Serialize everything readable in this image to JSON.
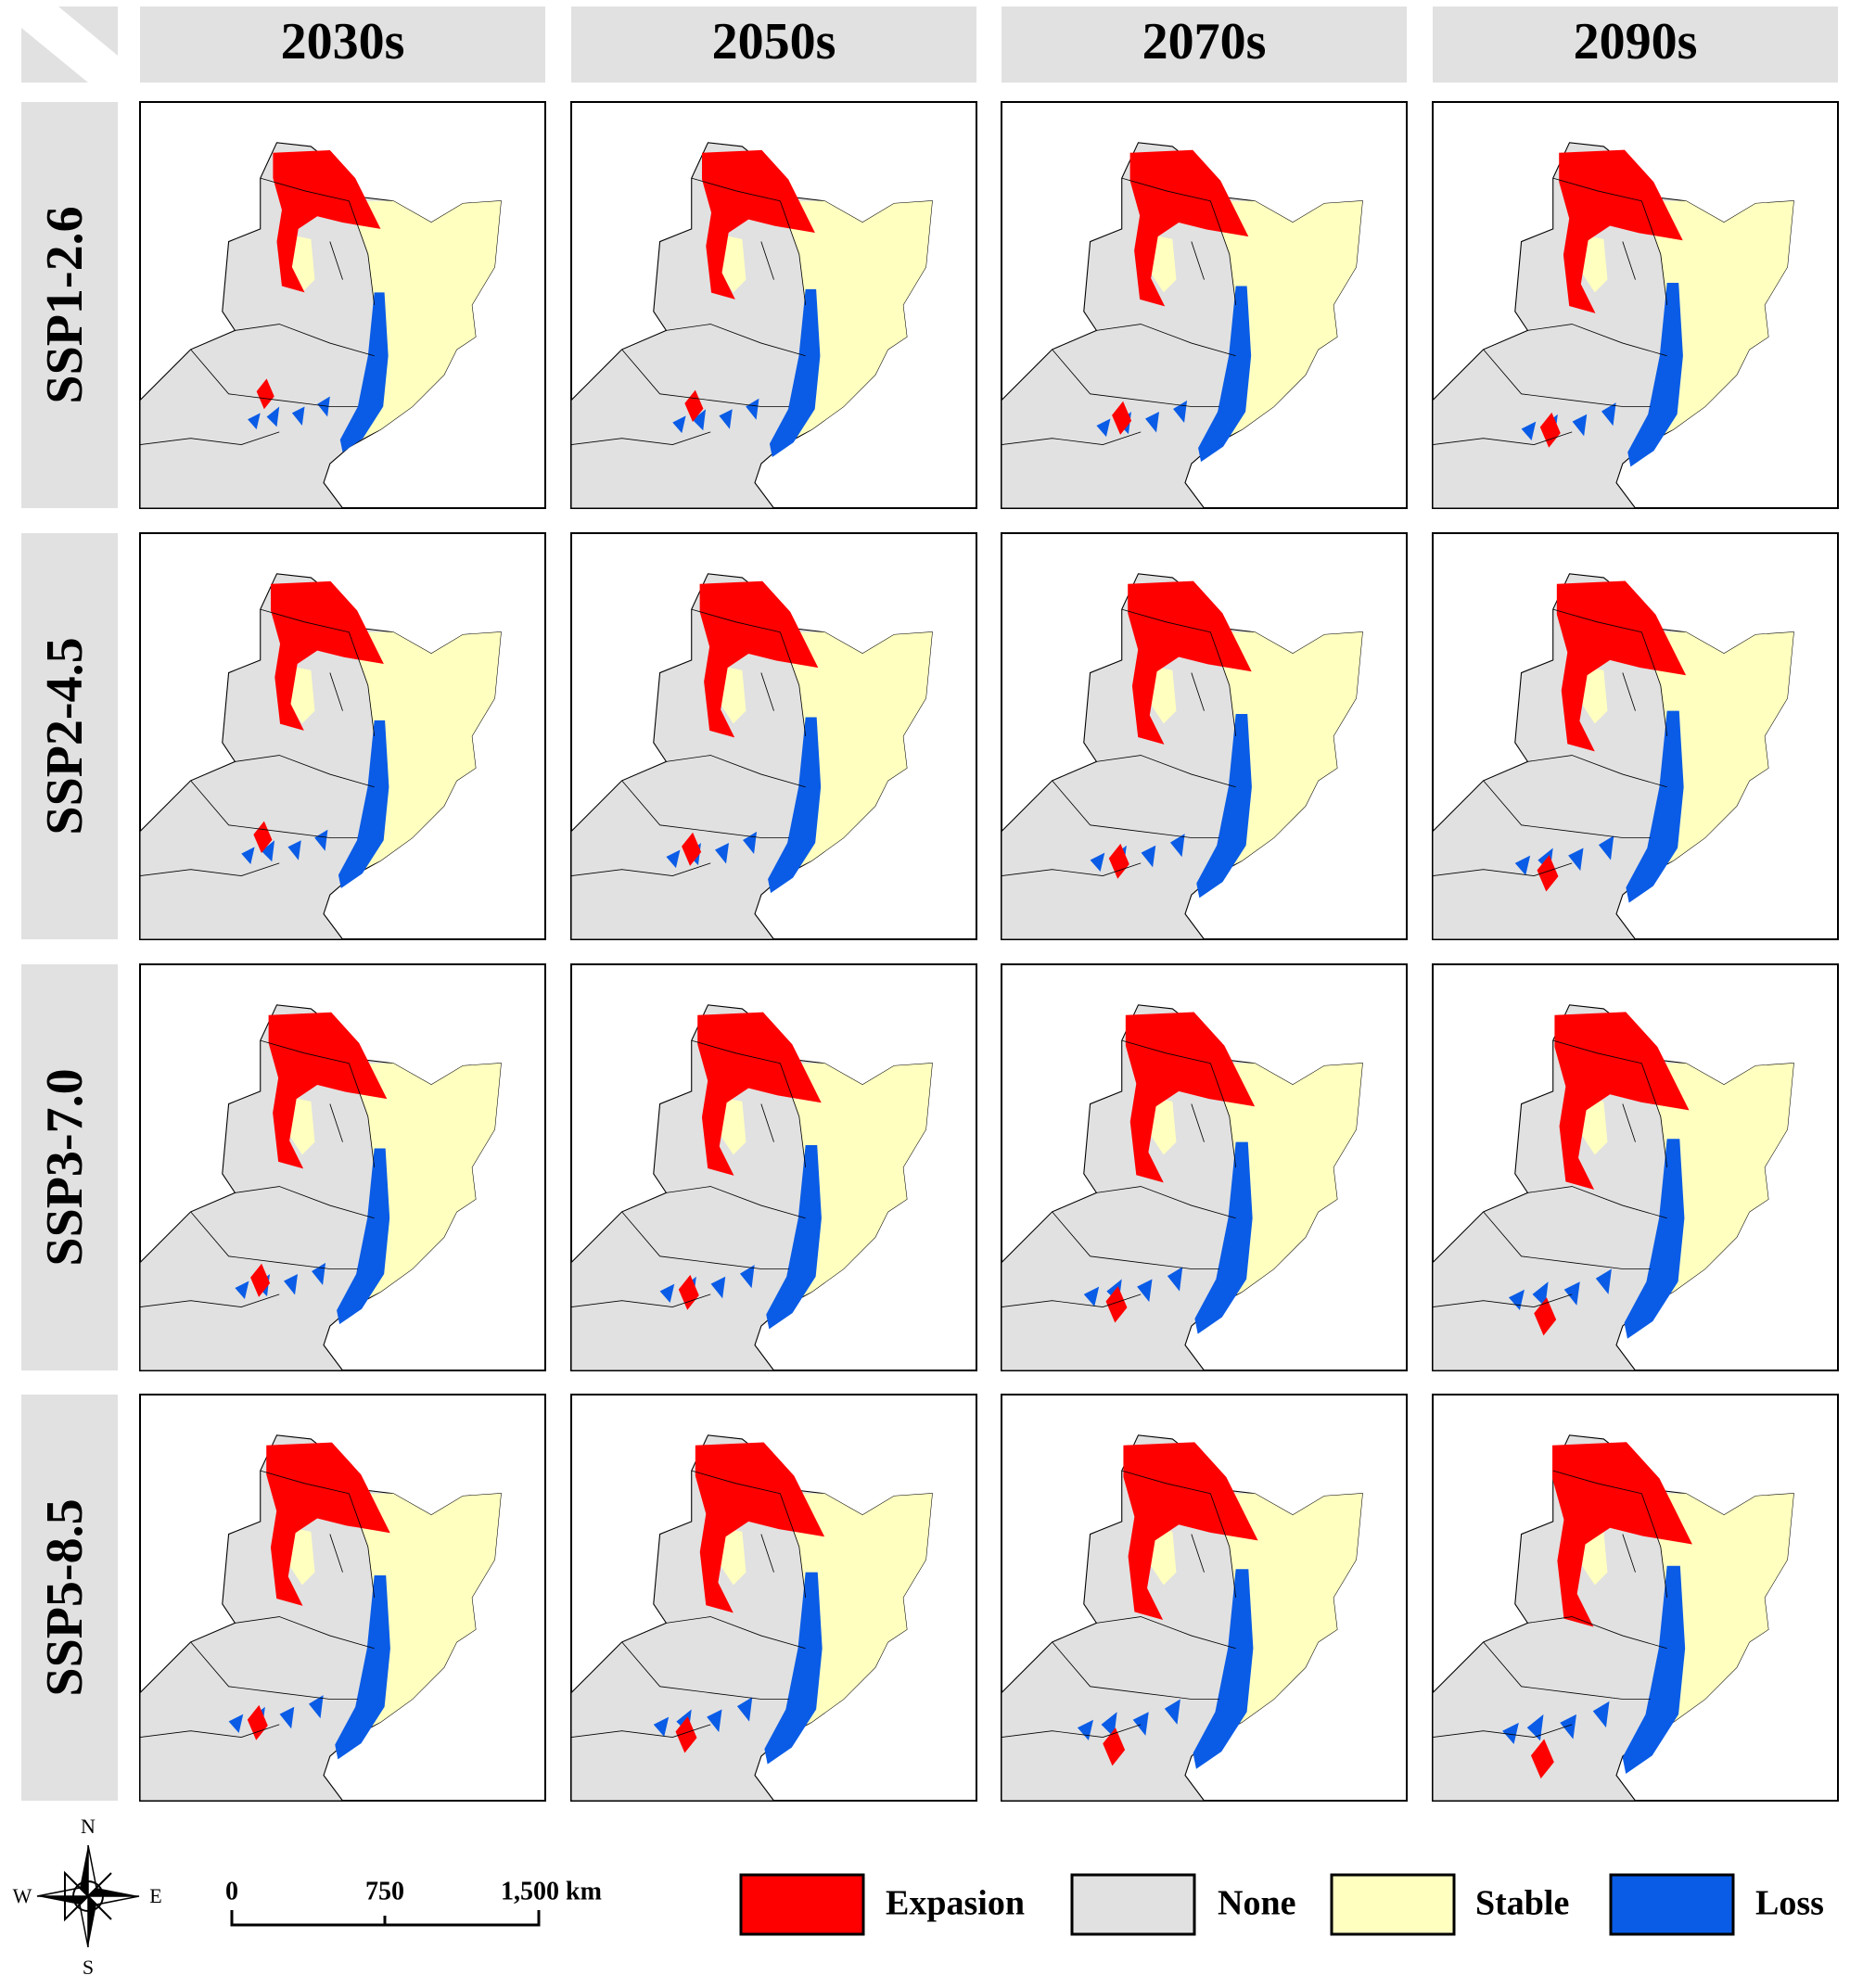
{
  "columns": [
    "2030s",
    "2050s",
    "2070s",
    "2090s"
  ],
  "rows": [
    "SSP1-2.6",
    "SSP2-4.5",
    "SSP3-7.0",
    "SSP5-8.5"
  ],
  "compass": {
    "north": "N",
    "south": "S",
    "west": "W",
    "east": "E"
  },
  "scale_bar": {
    "labels": [
      "0",
      "750",
      "1,500 km"
    ]
  },
  "legend": [
    {
      "label": "Expasion",
      "color": "#ff0000"
    },
    {
      "label": "None",
      "color": "#e1e1e1"
    },
    {
      "label": "Stable",
      "color": "#ffffc0"
    },
    {
      "label": "Loss",
      "color": "#0a5ce6"
    }
  ]
}
